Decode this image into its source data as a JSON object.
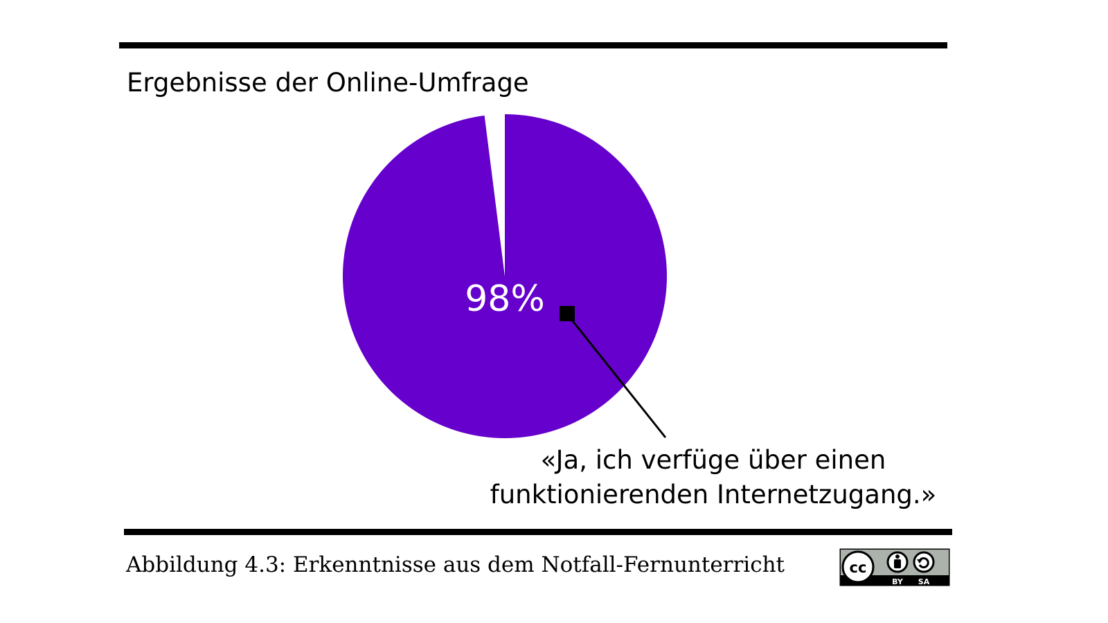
{
  "chart_data": {
    "type": "pie",
    "title": "Ergebnisse der Online-Umfrage",
    "slices": [
      {
        "label": "«Ja, ich verfüge über einen funktionierenden Internetzugang.»",
        "value": 98,
        "value_label": "98%",
        "color": "#6600cc"
      },
      {
        "label": "",
        "value": 2,
        "color": "#ffffff"
      }
    ],
    "annotation_lines": [
      "«Ja, ich verfüge über einen",
      "funktionierenden Internetzugang.»"
    ]
  },
  "caption": "Abbildung 4.3: Erkenntnisse aus dem Notfall-Fernunterricht",
  "license": {
    "icon_names": [
      "cc-icon",
      "by-icon",
      "sa-icon"
    ],
    "labels": [
      "BY",
      "SA"
    ]
  }
}
